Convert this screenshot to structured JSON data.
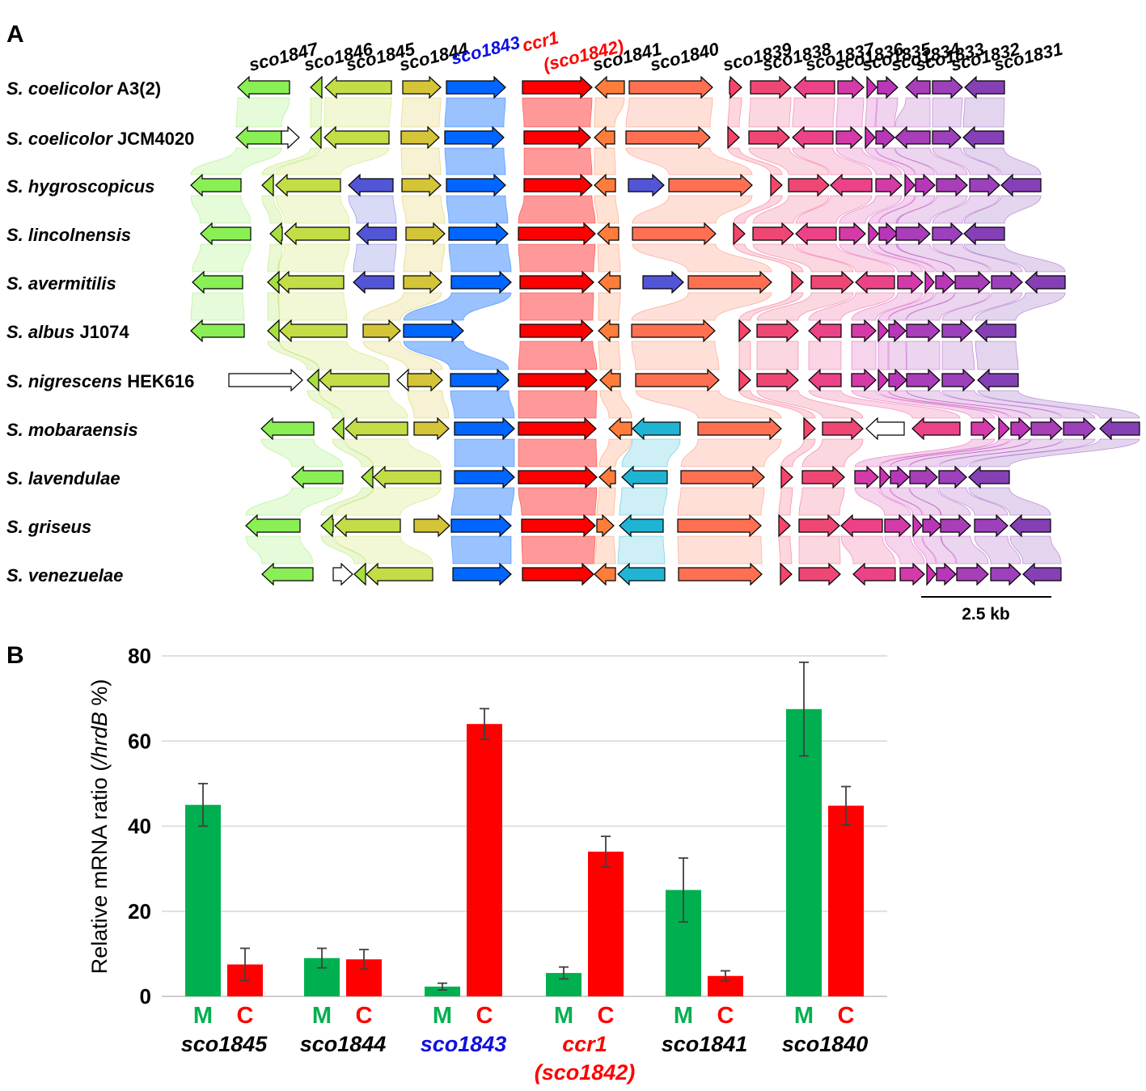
{
  "panel_a": {
    "label": "A",
    "gene_labels": [
      {
        "text": "sco1847",
        "color": "#000000"
      },
      {
        "text": "sco1846",
        "color": "#000000"
      },
      {
        "text": "sco1845",
        "color": "#000000"
      },
      {
        "text": "sco1844",
        "color": "#000000"
      },
      {
        "text": "sco1843",
        "color": "#1010e0"
      },
      {
        "text": "ccr1",
        "color": "#ff0000"
      },
      {
        "text": "(sco1842)",
        "color": "#ff0000"
      },
      {
        "text": "sco1841",
        "color": "#000000"
      },
      {
        "text": "sco1840",
        "color": "#000000"
      },
      {
        "text": "sco1839",
        "color": "#000000"
      },
      {
        "text": "sco1838",
        "color": "#000000"
      },
      {
        "text": "sco1837",
        "color": "#000000"
      },
      {
        "text": "sco1836",
        "color": "#000000"
      },
      {
        "text": "sco1835",
        "color": "#000000"
      },
      {
        "text": "sco1834",
        "color": "#000000"
      },
      {
        "text": "sco1833",
        "color": "#000000"
      },
      {
        "text": "sco1832",
        "color": "#000000"
      },
      {
        "text": "sco1831",
        "color": "#000000"
      }
    ],
    "species": [
      {
        "italic": "S. coelicolor",
        "strain": "A3(2)"
      },
      {
        "italic": "S. coelicolor",
        "strain": "JCM4020"
      },
      {
        "italic": "S. hygroscopicus",
        "strain": ""
      },
      {
        "italic": "S. lincolnensis",
        "strain": ""
      },
      {
        "italic": "S. avermitilis",
        "strain": ""
      },
      {
        "italic": "S. albus",
        "strain": "J1074"
      },
      {
        "italic": "S. nigrescens",
        "strain": "HEK616"
      },
      {
        "italic": "S. mobaraensis",
        "strain": ""
      },
      {
        "italic": "S. lavendulae",
        "strain": ""
      },
      {
        "italic": "S. griseus",
        "strain": ""
      },
      {
        "italic": "S. venezuelae",
        "strain": ""
      }
    ],
    "scale_bar": "2.5 kb",
    "gene_colors": {
      "sco1847": "#8aee55",
      "sco1846": "#a6e040",
      "sco1845": "#c2dd45",
      "sco1844": "#d4c437",
      "sco1843": "#0066ff",
      "ccr1": "#ff0000",
      "sco1841": "#ff7c3a",
      "sco1840": "#ff7052",
      "sco1839": "#f7446a",
      "sco1838": "#ef4774",
      "sco1837": "#ec4288",
      "sco1836": "#d43aa8",
      "sco1835": "#cc32b4",
      "sco1834": "#b836b8",
      "sco1833": "#a83eb8",
      "sco1832": "#9c40bc",
      "sco1831": "#8440b4",
      "extra_blue": "#5155d6",
      "extra_cyan": "#20b4d4",
      "unknown": "#ffffff"
    }
  },
  "panel_b": {
    "label": "B",
    "chart_data": {
      "type": "bar",
      "ylabel_prefix": "Relative mRNA ratio (",
      "ylabel_italic": "/hrdB",
      "ylabel_suffix": " %)",
      "ylim": [
        0,
        80
      ],
      "yticks": [
        "0",
        "20",
        "40",
        "60",
        "80"
      ],
      "legend": {
        "M": "M",
        "C": "C"
      },
      "series_colors": {
        "M": "#00b050",
        "C": "#ff0000"
      },
      "groups": [
        {
          "name": "sco1845",
          "color": "#000000",
          "M": 45,
          "M_err": 5,
          "C": 7.5,
          "C_err": 3.8
        },
        {
          "name": "sco1844",
          "color": "#000000",
          "M": 9,
          "M_err": 2.3,
          "C": 8.7,
          "C_err": 2.3
        },
        {
          "name": "sco1843",
          "color": "#1010e0",
          "M": 2.3,
          "M_err": 0.8,
          "C": 64,
          "C_err": 3.6
        },
        {
          "name": "ccr1",
          "name2": "(sco1842)",
          "color": "#ff0000",
          "M": 5.5,
          "M_err": 1.4,
          "C": 34,
          "C_err": 3.6
        },
        {
          "name": "sco1841",
          "color": "#000000",
          "M": 25,
          "M_err": 7.5,
          "C": 4.8,
          "C_err": 1.2
        },
        {
          "name": "sco1840",
          "color": "#000000",
          "M": 67.5,
          "M_err": 11,
          "C": 44.8,
          "C_err": 4.5
        }
      ]
    }
  }
}
